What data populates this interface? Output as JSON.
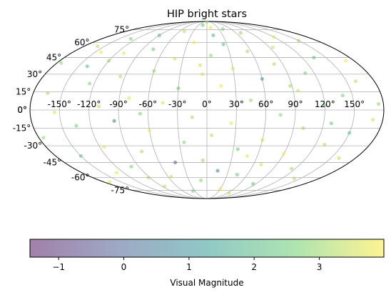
{
  "chart_data": {
    "type": "scatter",
    "projection": "mollweide",
    "title": "HIP bright stars",
    "x_axis": {
      "quantity": "galactic longitude (degrees)",
      "range": [
        -180,
        180
      ],
      "tick_values": [
        -150,
        -120,
        -90,
        -60,
        -30,
        0,
        30,
        60,
        90,
        120,
        150
      ],
      "tick_labels": [
        "-150°",
        "-120°",
        "-90°",
        "-60°",
        "-30°",
        "0°",
        "30°",
        "60°",
        "90°",
        "120°",
        "150°"
      ]
    },
    "y_axis": {
      "quantity": "galactic latitude (degrees)",
      "range": [
        -90,
        90
      ],
      "tick_values": [
        -75,
        -60,
        -45,
        -30,
        -15,
        0,
        15,
        30,
        45,
        60,
        75
      ],
      "tick_labels": [
        "-75°",
        "-60°",
        "-45°",
        "-30°",
        "-15°",
        "0°",
        "15°",
        "30°",
        "45°",
        "60°",
        "75°"
      ]
    },
    "grid": true,
    "colorbar": {
      "label": "Visual Magnitude",
      "range": [
        -1.44,
        3.99
      ],
      "tick_values": [
        -1,
        0,
        1,
        2,
        3
      ],
      "tick_labels": [
        "−1",
        "0",
        "1",
        "2",
        "3"
      ],
      "colormap": "viridis",
      "alpha": 0.5,
      "placement": "bottom"
    },
    "points": [
      {
        "lon": 0,
        "lat": 88,
        "mag": 3.3
      },
      {
        "lon": -15,
        "lat": 82,
        "mag": 2.4
      },
      {
        "lon": 10,
        "lat": 78,
        "mag": 3.8
      },
      {
        "lon": 40,
        "lat": 76,
        "mag": 2.6
      },
      {
        "lon": -50,
        "lat": 73,
        "mag": 3.5
      },
      {
        "lon": 70,
        "lat": 71,
        "mag": 3.0
      },
      {
        "lon": -90,
        "lat": 68,
        "mag": 1.9
      },
      {
        "lon": 120,
        "lat": 66,
        "mag": 3.7
      },
      {
        "lon": -130,
        "lat": 64,
        "mag": 2.7
      },
      {
        "lon": 150,
        "lat": 62,
        "mag": 3.2
      },
      {
        "lon": -20,
        "lat": 60,
        "mag": 3.9
      },
      {
        "lon": 25,
        "lat": 58,
        "mag": 2.1
      },
      {
        "lon": -160,
        "lat": 56,
        "mag": 3.4
      },
      {
        "lon": 95,
        "lat": 55,
        "mag": 3.6
      },
      {
        "lon": -75,
        "lat": 53,
        "mag": 2.5
      },
      {
        "lon": 55,
        "lat": 51,
        "mag": 3.1
      },
      {
        "lon": -110,
        "lat": 49,
        "mag": 3.8
      },
      {
        "lon": 5,
        "lat": 47,
        "mag": 3.0
      },
      {
        "lon": 135,
        "lat": 45,
        "mag": 2.2
      },
      {
        "lon": -40,
        "lat": 44,
        "mag": 3.5
      },
      {
        "lon": 170,
        "lat": 42,
        "mag": 3.9
      },
      {
        "lon": -175,
        "lat": 40,
        "mag": 2.9
      },
      {
        "lon": 80,
        "lat": 39,
        "mag": 3.3
      },
      {
        "lon": -140,
        "lat": 37,
        "mag": 2.0
      },
      {
        "lon": 30,
        "lat": 35,
        "mag": 3.7
      },
      {
        "lon": -60,
        "lat": 33,
        "mag": 3.0
      },
      {
        "lon": 110,
        "lat": 31,
        "mag": 2.6
      },
      {
        "lon": -5,
        "lat": 30,
        "mag": 3.6
      },
      {
        "lon": -95,
        "lat": 28,
        "mag": 3.2
      },
      {
        "lon": 60,
        "lat": 26,
        "mag": 1.2
      },
      {
        "lon": 160,
        "lat": 24,
        "mag": 3.4
      },
      {
        "lon": -125,
        "lat": 22,
        "mag": 2.8
      },
      {
        "lon": 15,
        "lat": 20,
        "mag": 3.9
      },
      {
        "lon": -30,
        "lat": 18,
        "mag": 2.3
      },
      {
        "lon": 95,
        "lat": 16,
        "mag": 3.5
      },
      {
        "lon": -165,
        "lat": 14,
        "mag": 3.1
      },
      {
        "lon": 140,
        "lat": 12,
        "mag": 2.7
      },
      {
        "lon": -80,
        "lat": 10,
        "mag": 3.8
      },
      {
        "lon": 45,
        "lat": 8,
        "mag": 3.0
      },
      {
        "lon": -45,
        "lat": 6,
        "mag": 3.6
      },
      {
        "lon": 120,
        "lat": 4,
        "mag": 2.4
      },
      {
        "lon": -110,
        "lat": 3,
        "mag": 3.3
      },
      {
        "lon": -155,
        "lat": -2,
        "mag": 3.7
      },
      {
        "lon": 75,
        "lat": -4,
        "mag": 2.9
      },
      {
        "lon": -15,
        "lat": -6,
        "mag": 3.2
      },
      {
        "lon": 170,
        "lat": -8,
        "mag": 3.5
      },
      {
        "lon": -95,
        "lat": -9,
        "mag": 0.4
      },
      {
        "lon": 25,
        "lat": -11,
        "mag": 3.8
      },
      {
        "lon": -135,
        "lat": -13,
        "mag": 2.6
      },
      {
        "lon": 100,
        "lat": -15,
        "mag": 3.1
      },
      {
        "lon": -60,
        "lat": -17,
        "mag": 3.9
      },
      {
        "lon": 150,
        "lat": -19,
        "mag": 2.2
      },
      {
        "lon": 5,
        "lat": -21,
        "mag": 3.4
      },
      {
        "lon": -175,
        "lat": -23,
        "mag": 3.0
      },
      {
        "lon": 60,
        "lat": -25,
        "mag": 3.6
      },
      {
        "lon": -25,
        "lat": -27,
        "mag": 2.8
      },
      {
        "lon": 130,
        "lat": -29,
        "mag": 3.3
      },
      {
        "lon": -115,
        "lat": -31,
        "mag": 3.7
      },
      {
        "lon": 35,
        "lat": -33,
        "mag": 2.5
      },
      {
        "lon": -75,
        "lat": -35,
        "mag": 3.2
      },
      {
        "lon": 90,
        "lat": -37,
        "mag": 3.9
      },
      {
        "lon": -150,
        "lat": -39,
        "mag": 2.1
      },
      {
        "lon": 160,
        "lat": -41,
        "mag": 3.4
      },
      {
        "lon": -5,
        "lat": -43,
        "mag": 3.0
      },
      {
        "lon": -40,
        "lat": -45,
        "mag": 0.0
      },
      {
        "lon": 70,
        "lat": -47,
        "mag": 3.6
      },
      {
        "lon": -100,
        "lat": -49,
        "mag": 2.7
      },
      {
        "lon": 115,
        "lat": -51,
        "mag": 3.1
      },
      {
        "lon": 15,
        "lat": -53,
        "mag": 0.7
      },
      {
        "lon": -130,
        "lat": -55,
        "mag": 3.8
      },
      {
        "lon": 45,
        "lat": -57,
        "mag": 2.4
      },
      {
        "lon": -55,
        "lat": -59,
        "mag": 3.5
      },
      {
        "lon": 140,
        "lat": -61,
        "mag": 3.2
      },
      {
        "lon": -10,
        "lat": -63,
        "mag": 2.9
      },
      {
        "lon": -170,
        "lat": -65,
        "mag": 3.7
      },
      {
        "lon": 85,
        "lat": -67,
        "mag": 2.3
      },
      {
        "lon": -85,
        "lat": -70,
        "mag": 3.3
      },
      {
        "lon": 30,
        "lat": -73,
        "mag": 3.9
      },
      {
        "lon": -35,
        "lat": -76,
        "mag": 2.6
      },
      {
        "lon": 65,
        "lat": -79,
        "mag": 3.4
      },
      {
        "lon": -120,
        "lat": 42,
        "mag": 3.0
      },
      {
        "lon": 12,
        "lat": 68,
        "mag": 1.8
      },
      {
        "lon": -8,
        "lat": 38,
        "mag": 3.6
      },
      {
        "lon": 88,
        "lat": 20,
        "mag": 3.1
      },
      {
        "lon": -68,
        "lat": -3,
        "mag": 2.7
      },
      {
        "lon": 48,
        "lat": -39,
        "mag": 3.8
      },
      {
        "lon": -92,
        "lat": -60,
        "mag": 3.2
      },
      {
        "lon": 128,
        "lat": -11,
        "mag": 2.5
      },
      {
        "lon": -142,
        "lat": 50,
        "mag": 3.9
      },
      {
        "lon": 175,
        "lat": 5,
        "mag": 3.0
      }
    ]
  }
}
